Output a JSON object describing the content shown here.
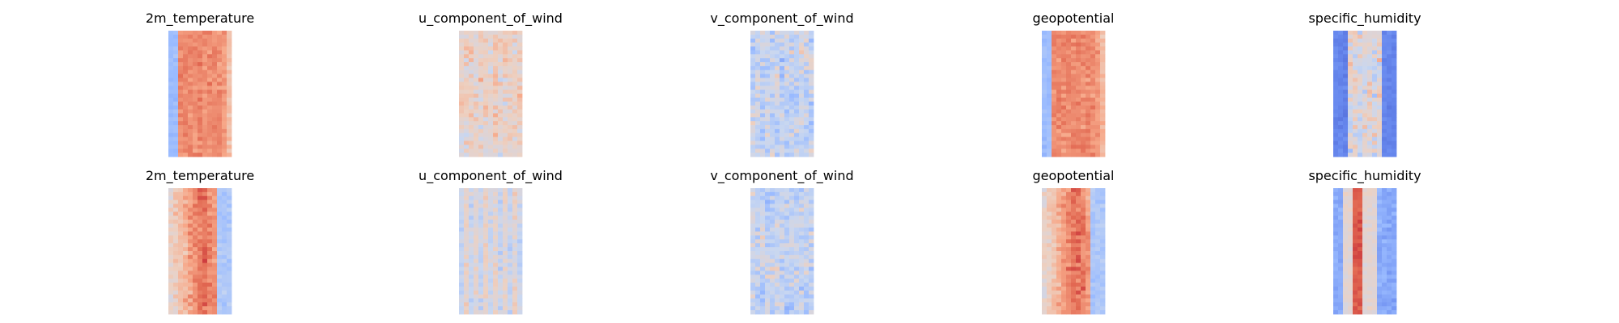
{
  "figure": {
    "colormap": "coolwarm",
    "colormap_stops": [
      "#3b4cc0",
      "#6788ee",
      "#9abbff",
      "#c9d7f0",
      "#edd1c2",
      "#f7a889",
      "#e26952",
      "#b40426"
    ]
  },
  "chart_data": [
    {
      "type": "heatmap",
      "title": "2m_temperature",
      "row": 0,
      "column": 0,
      "pattern": "warm-core"
    },
    {
      "type": "heatmap",
      "title": "u_component_of_wind",
      "row": 0,
      "column": 1,
      "pattern": "noisy"
    },
    {
      "type": "heatmap",
      "title": "v_component_of_wind",
      "row": 0,
      "column": 2,
      "pattern": "noisy-neutral"
    },
    {
      "type": "heatmap",
      "title": "geopotential",
      "row": 0,
      "column": 3,
      "pattern": "warm-core"
    },
    {
      "type": "heatmap",
      "title": "specific_humidity",
      "row": 0,
      "column": 4,
      "pattern": "cool-edges"
    },
    {
      "type": "heatmap",
      "title": "2m_temperature",
      "row": 1,
      "column": 0,
      "pattern": "warm-band"
    },
    {
      "type": "heatmap",
      "title": "u_component_of_wind",
      "row": 1,
      "column": 1,
      "pattern": "striped"
    },
    {
      "type": "heatmap",
      "title": "v_component_of_wind",
      "row": 1,
      "column": 2,
      "pattern": "noisy-neutral"
    },
    {
      "type": "heatmap",
      "title": "geopotential",
      "row": 1,
      "column": 3,
      "pattern": "warm-band"
    },
    {
      "type": "heatmap",
      "title": "specific_humidity",
      "row": 1,
      "column": 4,
      "pattern": "cool-edges-band"
    }
  ]
}
